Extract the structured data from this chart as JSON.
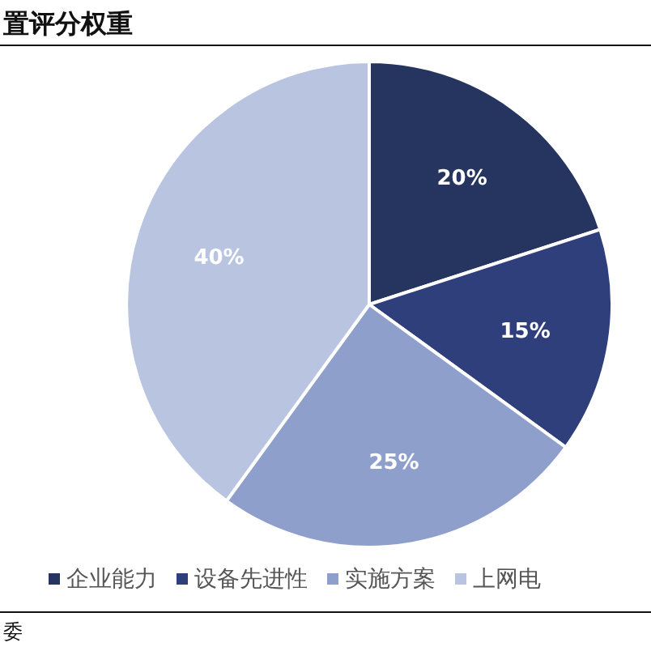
{
  "chart_data": {
    "type": "pie",
    "title": "置评分权重",
    "categories": [
      "企业能力",
      "设备先进性",
      "实施方案",
      "上网电"
    ],
    "values": [
      20,
      15,
      25,
      40
    ],
    "colors": [
      "#25355f",
      "#2e3f7c",
      "#8f9fcc",
      "#b8c4e0"
    ],
    "value_labels": [
      "20%",
      "15%",
      "25%",
      "40%"
    ],
    "legend": "bottom",
    "annotations": [
      "委"
    ]
  }
}
